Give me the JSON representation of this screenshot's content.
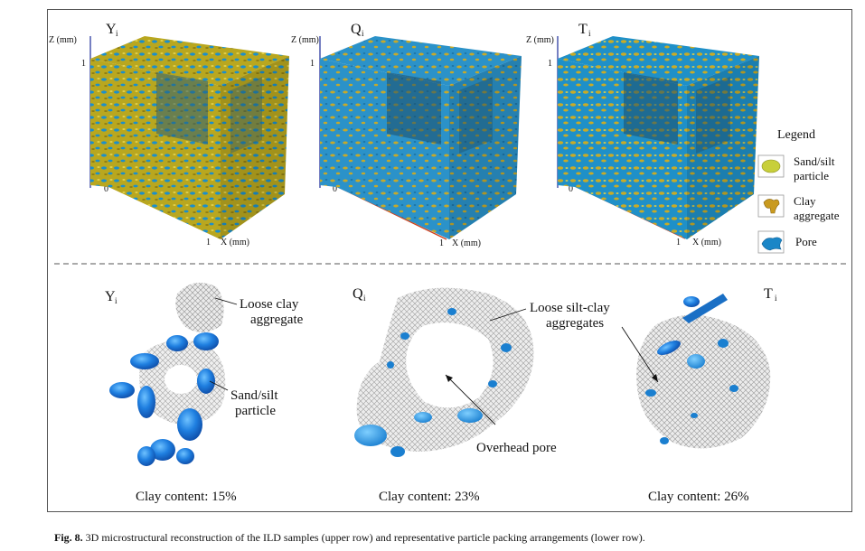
{
  "top_row": {
    "cubes": [
      {
        "label": "Y",
        "sub": "i",
        "z_axis": "Z (mm)",
        "z_tick": "1",
        "origin": "0",
        "x_tick": "1",
        "x_axis": "X (mm)",
        "face_color": "#b9a71f",
        "pore_color": "#1b8fcc"
      },
      {
        "label": "Q",
        "sub": "i",
        "z_axis": "Z (mm)",
        "z_tick": "1",
        "origin": "0",
        "x_tick": "1",
        "x_axis": "X (mm)",
        "face_color": "#2b92c9",
        "pore_color": "#c6a92a"
      },
      {
        "label": "T",
        "sub": "i",
        "z_axis": "Z (mm)",
        "z_tick": "1",
        "origin": "0",
        "x_tick": "1",
        "x_axis": "X (mm)",
        "face_color": "#1f90c8",
        "pore_color": "#c9ab26"
      }
    ]
  },
  "legend": {
    "title": "Legend",
    "items": [
      {
        "line1": "Sand/silt",
        "line2": "particle",
        "color": "#c8cf3a"
      },
      {
        "line1": "Clay",
        "line2": "aggregate",
        "color": "#c99a1f"
      },
      {
        "line1": "Pore",
        "line2": "",
        "color": "#1a86c7"
      }
    ]
  },
  "bottom_row": {
    "panels": [
      {
        "label": "Y",
        "sub": "i",
        "annotations": [
          [
            "Loose clay",
            "aggregate"
          ],
          [
            "Sand/silt",
            "particle"
          ]
        ],
        "clay_content": "Clay content: 15%"
      },
      {
        "label": "Q",
        "sub": "i",
        "annotations": [
          [
            "Loose silt-clay",
            "aggregates"
          ],
          [
            "Overhead pore"
          ]
        ],
        "clay_content": "Clay content: 23%"
      },
      {
        "label": "T",
        "sub": "i",
        "annotations": [],
        "clay_content": "Clay content: 26%"
      }
    ]
  },
  "caption": {
    "prefix": "Fig. 8.",
    "text": "3D microstructural reconstruction of the ILD samples (upper row) and representative particle packing arrangements (lower row)."
  }
}
